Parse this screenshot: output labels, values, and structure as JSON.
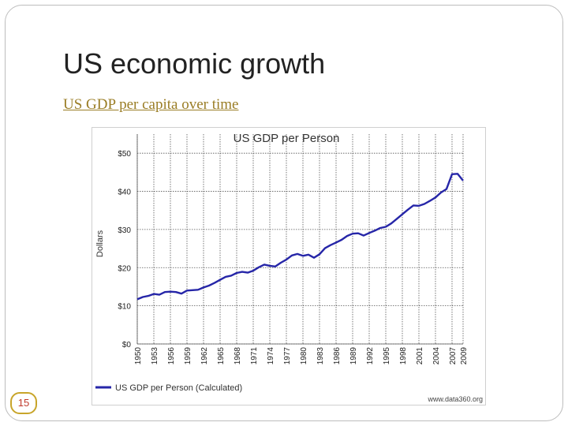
{
  "slide": {
    "title": "US economic growth",
    "link_text": "US GDP per capita over time",
    "slide_number": "15"
  },
  "chart_data": {
    "type": "line",
    "title": "US GDP per Person",
    "xlabel": "",
    "ylabel": "Dollars",
    "ylim": [
      0,
      55
    ],
    "y_ticks": [
      "$0",
      "$10",
      "$20",
      "$30",
      "$40",
      "$50"
    ],
    "y_tick_values": [
      0,
      10,
      20,
      30,
      40,
      50
    ],
    "x_tick_labels": [
      "1950",
      "1953",
      "1956",
      "1959",
      "1962",
      "1965",
      "1968",
      "1971",
      "1974",
      "1977",
      "1980",
      "1983",
      "1986",
      "1989",
      "1992",
      "1995",
      "1998",
      "2001",
      "2004",
      "2007",
      "2009"
    ],
    "grid": true,
    "legend_position": "bottom-left",
    "source": "www.data360.org",
    "line_color": "#2626a8",
    "series": [
      {
        "name": "US GDP per Person (Calculated)",
        "x": [
          1950,
          1951,
          1952,
          1953,
          1954,
          1955,
          1956,
          1957,
          1958,
          1959,
          1960,
          1961,
          1962,
          1963,
          1964,
          1965,
          1966,
          1967,
          1968,
          1969,
          1970,
          1971,
          1972,
          1973,
          1974,
          1975,
          1976,
          1977,
          1978,
          1979,
          1980,
          1981,
          1982,
          1983,
          1984,
          1985,
          1986,
          1987,
          1988,
          1989,
          1990,
          1991,
          1992,
          1993,
          1994,
          1995,
          1996,
          1997,
          1998,
          1999,
          2000,
          2001,
          2002,
          2003,
          2004,
          2005,
          2006,
          2007,
          2008,
          2009
        ],
        "values": [
          11.7,
          12.3,
          12.6,
          13.1,
          12.9,
          13.6,
          13.7,
          13.6,
          13.2,
          14.0,
          14.1,
          14.2,
          14.8,
          15.3,
          16.0,
          16.8,
          17.6,
          17.9,
          18.6,
          18.9,
          18.7,
          19.2,
          20.1,
          20.8,
          20.5,
          20.3,
          21.3,
          22.1,
          23.2,
          23.6,
          23.1,
          23.4,
          22.6,
          23.5,
          25.1,
          25.9,
          26.6,
          27.3,
          28.3,
          28.9,
          29.0,
          28.4,
          29.1,
          29.7,
          30.4,
          30.7,
          31.6,
          32.8,
          34.0,
          35.2,
          36.3,
          36.2,
          36.7,
          37.5,
          38.4,
          39.7,
          40.6,
          44.5,
          44.6,
          42.8
        ]
      }
    ]
  }
}
